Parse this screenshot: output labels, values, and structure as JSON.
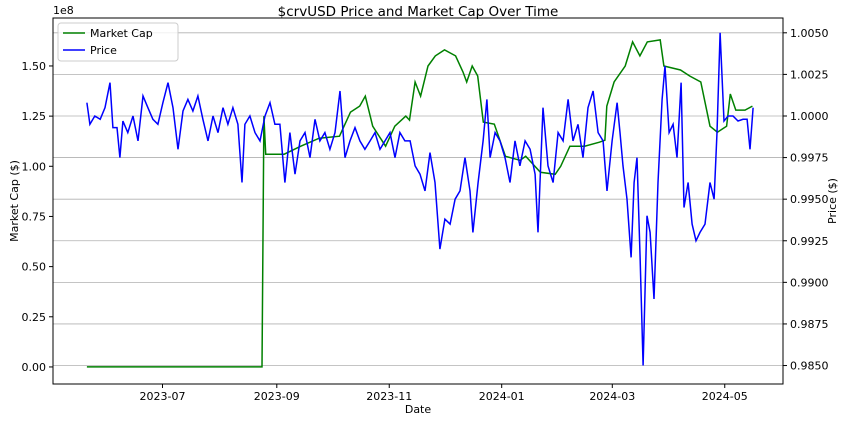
{
  "chart_data": {
    "type": "line",
    "title": "$crvUSD Price and Market Cap Over Time",
    "xlabel": "Date",
    "ylabel_left": "Market Cap ($)",
    "ylabel_right": "Price ($)",
    "left_offset_label": "1e8",
    "x_unit": "days since 2023-05-21",
    "xlim": [
      -18.4,
      377.6
    ],
    "ylim_left": [
      -0.085,
      1.739
    ],
    "ylim_right": [
      0.98389,
      1.00589
    ],
    "x_ticks": [
      {
        "label": "2023-07",
        "x": 41
      },
      {
        "label": "2023-09",
        "x": 103
      },
      {
        "label": "2023-11",
        "x": 164
      },
      {
        "label": "2024-01",
        "x": 225
      },
      {
        "label": "2024-03",
        "x": 285
      },
      {
        "label": "2024-05",
        "x": 346
      }
    ],
    "left_ticks": [
      {
        "label": "0.00",
        "v": 0
      },
      {
        "label": "0.25",
        "v": 0.25
      },
      {
        "label": "0.50",
        "v": 0.5
      },
      {
        "label": "0.75",
        "v": 0.75
      },
      {
        "label": "1.00",
        "v": 1
      },
      {
        "label": "1.25",
        "v": 1.25
      },
      {
        "label": "1.50",
        "v": 1.5
      }
    ],
    "right_ticks": [
      {
        "label": "0.9850",
        "v": 0.985
      },
      {
        "label": "0.9875",
        "v": 0.9875
      },
      {
        "label": "0.9900",
        "v": 0.99
      },
      {
        "label": "0.9925",
        "v": 0.9925
      },
      {
        "label": "0.9950",
        "v": 0.995
      },
      {
        "label": "0.9975",
        "v": 0.9975
      },
      {
        "label": "1.0000",
        "v": 1.0
      },
      {
        "label": "1.0025",
        "v": 1.0025
      },
      {
        "label": "1.0050",
        "v": 1.005
      }
    ],
    "grid": "horizontal (right axis)",
    "legend": {
      "placement": "top-left",
      "entries": [
        {
          "name": "Market Cap",
          "color": "#008000"
        },
        {
          "name": "Price",
          "color": "#0000ff"
        }
      ]
    },
    "series": [
      {
        "name": "Market Cap",
        "axis": "left",
        "color": "#008000",
        "points": [
          [
            0,
            0
          ],
          [
            95,
            0
          ],
          [
            96,
            1.25
          ],
          [
            97,
            1.06
          ],
          [
            107,
            1.06
          ],
          [
            116,
            1.1
          ],
          [
            126,
            1.14
          ],
          [
            137,
            1.15
          ],
          [
            143,
            1.27
          ],
          [
            148,
            1.3
          ],
          [
            151,
            1.35
          ],
          [
            155,
            1.2
          ],
          [
            162,
            1.1
          ],
          [
            167,
            1.2
          ],
          [
            173,
            1.25
          ],
          [
            175,
            1.23
          ],
          [
            178,
            1.42
          ],
          [
            181,
            1.35
          ],
          [
            185,
            1.5
          ],
          [
            189,
            1.55
          ],
          [
            194,
            1.58
          ],
          [
            200,
            1.55
          ],
          [
            204,
            1.47
          ],
          [
            206,
            1.42
          ],
          [
            209,
            1.5
          ],
          [
            212,
            1.45
          ],
          [
            215,
            1.22
          ],
          [
            221,
            1.21
          ],
          [
            227,
            1.05
          ],
          [
            235,
            1.03
          ],
          [
            238,
            1.05
          ],
          [
            246,
            0.97
          ],
          [
            254,
            0.96
          ],
          [
            257,
            1.0
          ],
          [
            262,
            1.1
          ],
          [
            270,
            1.1
          ],
          [
            278,
            1.12
          ],
          [
            281,
            1.13
          ],
          [
            282,
            1.3
          ],
          [
            286,
            1.42
          ],
          [
            292,
            1.5
          ],
          [
            296,
            1.62
          ],
          [
            300,
            1.55
          ],
          [
            304,
            1.62
          ],
          [
            311,
            1.63
          ],
          [
            313,
            1.5
          ],
          [
            322,
            1.48
          ],
          [
            327,
            1.45
          ],
          [
            333,
            1.42
          ],
          [
            338,
            1.2
          ],
          [
            342,
            1.17
          ],
          [
            347,
            1.2
          ],
          [
            349,
            1.36
          ],
          [
            352,
            1.28
          ],
          [
            357,
            1.28
          ],
          [
            361,
            1.3
          ]
        ]
      },
      {
        "name": "Price",
        "axis": "right",
        "color": "#0000ff",
        "points": [
          [
            0,
            1.0008
          ],
          [
            1.6,
            0.9995
          ],
          [
            4.3,
            1.0
          ],
          [
            7.2,
            0.9998
          ],
          [
            9.8,
            1.0005
          ],
          [
            12.5,
            1.002
          ],
          [
            14.1,
            0.9993
          ],
          [
            16.3,
            0.9993
          ],
          [
            17.9,
            0.9975
          ],
          [
            19.5,
            0.9997
          ],
          [
            22.2,
            0.999
          ],
          [
            25,
            1.0
          ],
          [
            27.7,
            0.9985
          ],
          [
            30.4,
            1.0012
          ],
          [
            33.1,
            1.0005
          ],
          [
            35.8,
            0.9998
          ],
          [
            38.5,
            0.9995
          ],
          [
            41.2,
            1.0008
          ],
          [
            44,
            1.002
          ],
          [
            46.7,
            1.0005
          ],
          [
            49.4,
            0.998
          ],
          [
            52.1,
            1.0003
          ],
          [
            54.8,
            1.001
          ],
          [
            57.5,
            1.0003
          ],
          [
            60.2,
            1.0012
          ],
          [
            62.9,
            0.9998
          ],
          [
            65.7,
            0.9985
          ],
          [
            68.4,
            1.0
          ],
          [
            71.1,
            0.999
          ],
          [
            73.8,
            1.0005
          ],
          [
            76.5,
            0.9995
          ],
          [
            79.2,
            1.0005
          ],
          [
            81.9,
            0.9995
          ],
          [
            84.1,
            0.996
          ],
          [
            85.7,
            0.9995
          ],
          [
            88.4,
            1.0
          ],
          [
            91.2,
            0.999
          ],
          [
            93.9,
            0.9985
          ],
          [
            96.6,
            1.0
          ],
          [
            99.3,
            1.0008
          ],
          [
            102,
            0.9995
          ],
          [
            104.7,
            0.9995
          ],
          [
            107.4,
            0.996
          ],
          [
            110.1,
            0.999
          ],
          [
            112.9,
            0.9965
          ],
          [
            115.6,
            0.9985
          ],
          [
            118.3,
            0.999
          ],
          [
            121,
            0.9975
          ],
          [
            123.7,
            0.9998
          ],
          [
            126.4,
            0.9985
          ],
          [
            129.1,
            0.999
          ],
          [
            131.8,
            0.998
          ],
          [
            134.6,
            0.999
          ],
          [
            137.3,
            1.0015
          ],
          [
            140,
            0.9975
          ],
          [
            142.7,
            0.9985
          ],
          [
            145.4,
            0.9993
          ],
          [
            148.1,
            0.9985
          ],
          [
            150.8,
            0.998
          ],
          [
            153.6,
            0.9985
          ],
          [
            156.3,
            0.999
          ],
          [
            159,
            0.998
          ],
          [
            161.7,
            0.9985
          ],
          [
            164.4,
            0.999
          ],
          [
            167.1,
            0.9975
          ],
          [
            169.8,
            0.999
          ],
          [
            172.5,
            0.9985
          ],
          [
            175.3,
            0.9985
          ],
          [
            178,
            0.997
          ],
          [
            180.7,
            0.9965
          ],
          [
            183.4,
            0.9955
          ],
          [
            186.1,
            0.9978
          ],
          [
            188.8,
            0.996
          ],
          [
            191.5,
            0.992
          ],
          [
            194.2,
            0.9938
          ],
          [
            197,
            0.9935
          ],
          [
            199.7,
            0.995
          ],
          [
            202.4,
            0.9955
          ],
          [
            205.1,
            0.9975
          ],
          [
            207.8,
            0.9955
          ],
          [
            209.4,
            0.993
          ],
          [
            212.2,
            0.996
          ],
          [
            214.9,
            0.9985
          ],
          [
            217,
            1.001
          ],
          [
            218.7,
            0.9975
          ],
          [
            221.4,
            0.999
          ],
          [
            224.1,
            0.9985
          ],
          [
            226.8,
            0.9975
          ],
          [
            229.5,
            0.996
          ],
          [
            232.2,
            0.9985
          ],
          [
            234.9,
            0.997
          ],
          [
            237.7,
            0.9985
          ],
          [
            240.4,
            0.998
          ],
          [
            243.1,
            0.9965
          ],
          [
            244.7,
            0.993
          ],
          [
            247.4,
            1.0005
          ],
          [
            250.1,
            0.997
          ],
          [
            252.9,
            0.996
          ],
          [
            255.6,
            0.999
          ],
          [
            258.3,
            0.9985
          ],
          [
            261,
            1.001
          ],
          [
            263.7,
            0.9985
          ],
          [
            266.4,
            0.9995
          ],
          [
            269.1,
            0.9975
          ],
          [
            271.8,
            1.0005
          ],
          [
            274.6,
            1.0015
          ],
          [
            277.3,
            0.999
          ],
          [
            280,
            0.9985
          ],
          [
            282.1,
            0.9955
          ],
          [
            284.9,
            0.9985
          ],
          [
            287.6,
            1.0008
          ],
          [
            289.2,
            0.999
          ],
          [
            290.8,
            0.997
          ],
          [
            293,
            0.995
          ],
          [
            295.2,
            0.9915
          ],
          [
            296.8,
            0.996
          ],
          [
            298.4,
            0.9975
          ],
          [
            300.1,
            0.9915
          ],
          [
            301.7,
            0.985
          ],
          [
            303.8,
            0.994
          ],
          [
            305.5,
            0.993
          ],
          [
            307.6,
            0.989
          ],
          [
            309.8,
            0.996
          ],
          [
            312,
            1.001
          ],
          [
            313.6,
            1.003
          ],
          [
            315.8,
            0.999
          ],
          [
            318,
            0.9995
          ],
          [
            320.1,
            0.9975
          ],
          [
            322.3,
            1.002
          ],
          [
            323.9,
            0.9945
          ],
          [
            326.1,
            0.996
          ],
          [
            328.3,
            0.9935
          ],
          [
            330.4,
            0.9925
          ],
          [
            332.6,
            0.993
          ],
          [
            335.3,
            0.9935
          ],
          [
            338,
            0.996
          ],
          [
            340.2,
            0.995
          ],
          [
            341.8,
            0.999
          ],
          [
            343.5,
            1.005
          ],
          [
            345.6,
            0.9997
          ],
          [
            347.8,
            1.0
          ],
          [
            350.5,
            1.0
          ],
          [
            353.2,
            0.9997
          ],
          [
            355.9,
            0.9998
          ],
          [
            358.1,
            0.9998
          ],
          [
            359.7,
            0.998
          ],
          [
            361.4,
            1.0005
          ]
        ]
      }
    ]
  }
}
